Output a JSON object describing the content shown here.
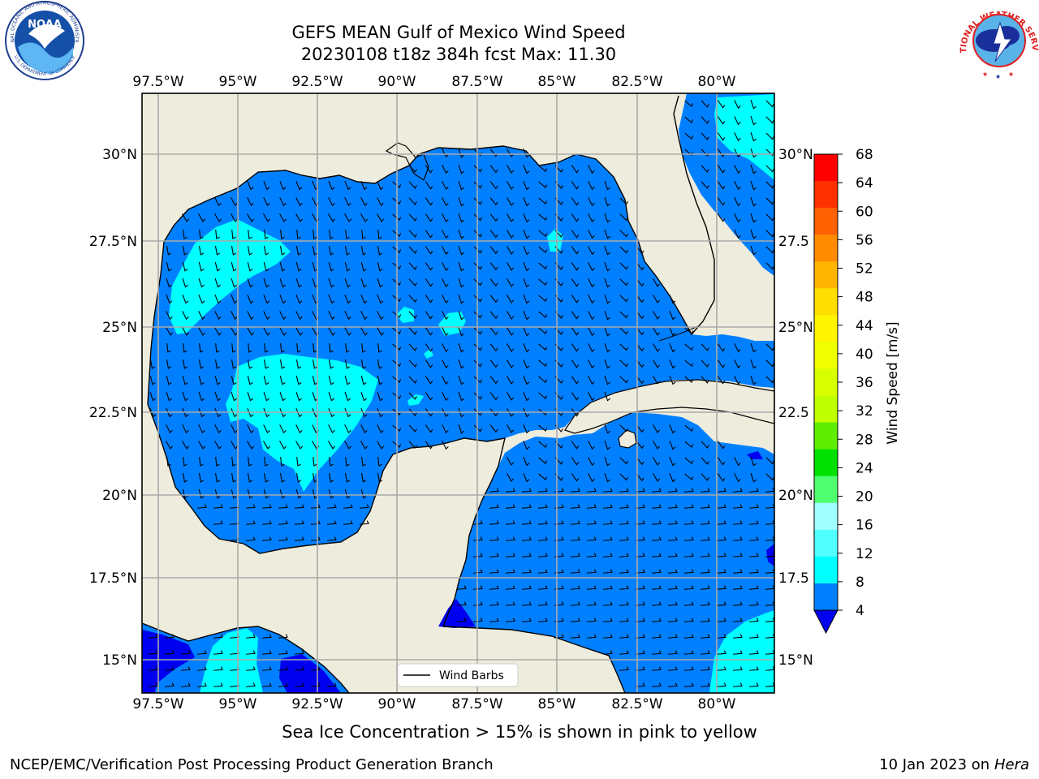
{
  "header": {
    "title": "GEFS MEAN Gulf of Mexico Wind Speed",
    "subtitle": "20230108 t18z 384h fcst   Max: 11.30"
  },
  "logos": {
    "left": {
      "name": "NOAA",
      "ring_text": "NATIONAL OCEANIC AND ATMOSPHERIC ADMINISTRATION",
      "bottom_text": "U.S. DEPARTMENT OF COMMERCE"
    },
    "right": {
      "ring_text": "NATIONAL WEATHER SERVICE"
    }
  },
  "map": {
    "lon_ticks": [
      "97.5°W",
      "95°W",
      "92.5°W",
      "90°W",
      "87.5°W",
      "85°W",
      "82.5°W",
      "80°W"
    ],
    "lat_ticks": [
      "30°N",
      "27.5°N",
      "25°N",
      "22.5°N",
      "20°N",
      "17.5°N",
      "15°N"
    ],
    "lat_ticks_right": [
      "30°N",
      "27.5",
      "25°N",
      "22.5",
      "20°N",
      "17.5",
      "15°N"
    ],
    "legend_label": "Wind Barbs",
    "colors": {
      "land": "#eeecdc",
      "wind_4_8": "#0080ff",
      "wind_8_12": "#00ffff",
      "wind_below_4": "#0000f0",
      "grid": "#aaaaaa"
    }
  },
  "colorbar": {
    "label": "Wind Speed [m/s]",
    "ticks": [
      "68",
      "64",
      "60",
      "56",
      "52",
      "48",
      "44",
      "40",
      "36",
      "32",
      "28",
      "24",
      "20",
      "16",
      "12",
      "8",
      "4"
    ],
    "colors": [
      "#ff0000",
      "#ff3000",
      "#ff6000",
      "#ff8c00",
      "#ffb400",
      "#ffde00",
      "#fff500",
      "#f0ff00",
      "#d8ff00",
      "#c0ff00",
      "#60ee00",
      "#00e000",
      "#50ff70",
      "#a0ffff",
      "#50ffff",
      "#00ffff",
      "#0080ff"
    ],
    "under_color": "#0000f0"
  },
  "footer": {
    "note": "Sea Ice Concentration > 15% is shown in pink to yellow",
    "credit": "NCEP/EMC/Verification Post Processing Product Generation Branch",
    "date": "10 Jan 2023 on ",
    "machine": "Hera"
  }
}
